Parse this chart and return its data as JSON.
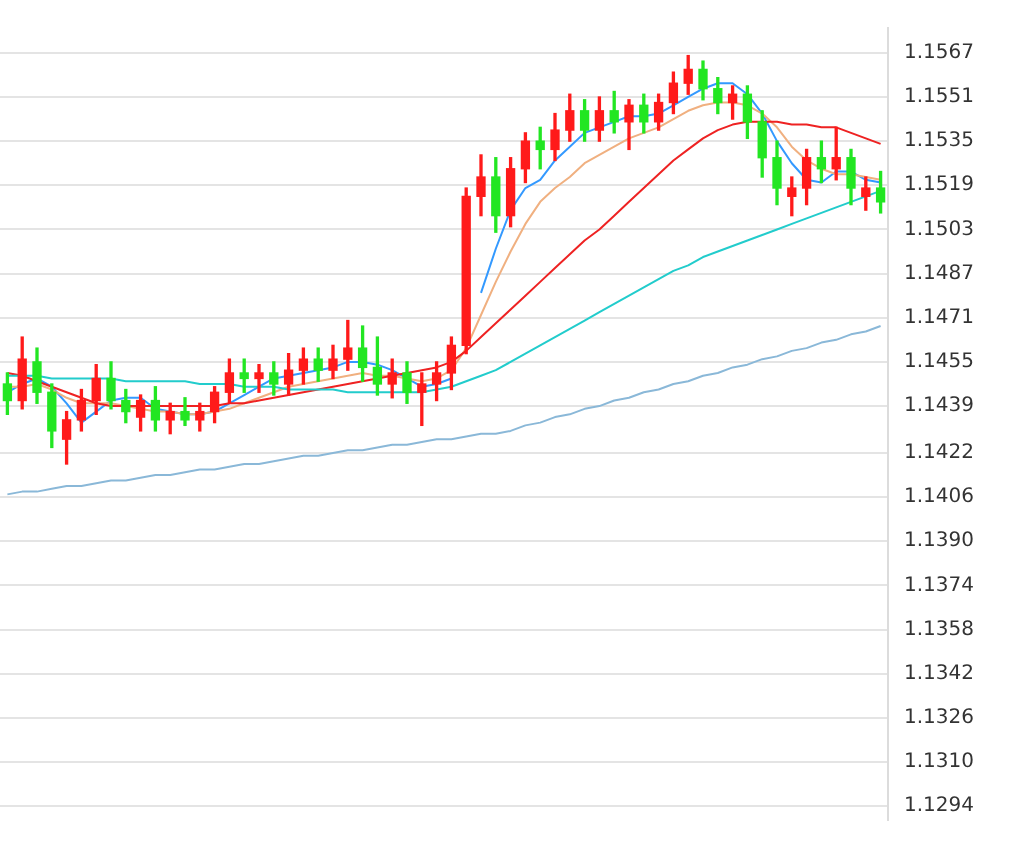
{
  "chart_data": {
    "type": "candlestick",
    "categories": [
      null,
      null,
      null,
      null,
      null,
      null,
      null,
      null,
      null,
      null,
      null,
      null,
      null,
      null,
      null,
      null,
      null,
      null,
      null,
      null,
      null,
      null,
      null,
      null,
      null,
      null,
      null,
      null,
      null,
      null,
      null,
      null,
      null,
      null,
      null,
      null,
      null,
      null,
      null,
      null,
      null,
      null,
      null,
      null,
      null,
      null,
      null,
      null,
      null,
      null,
      null,
      null,
      null,
      null,
      null,
      null,
      null,
      null,
      null,
      null
    ],
    "ohlc": [
      [
        1.1447,
        1.1451,
        1.1436,
        1.1441
      ],
      [
        1.1441,
        1.1464,
        1.1438,
        1.1456
      ],
      [
        1.1455,
        1.146,
        1.144,
        1.1444
      ],
      [
        1.1444,
        1.1447,
        1.1424,
        1.143
      ],
      [
        1.1427,
        1.1437,
        1.1418,
        1.1434
      ],
      [
        1.1434,
        1.1445,
        1.143,
        1.1441
      ],
      [
        1.1441,
        1.1454,
        1.1436,
        1.1449
      ],
      [
        1.1449,
        1.1455,
        1.1438,
        1.1441
      ],
      [
        1.1441,
        1.1445,
        1.1433,
        1.1437
      ],
      [
        1.1435,
        1.1443,
        1.143,
        1.1441
      ],
      [
        1.1441,
        1.1446,
        1.143,
        1.1434
      ],
      [
        1.1434,
        1.144,
        1.1429,
        1.1437
      ],
      [
        1.1437,
        1.1442,
        1.1432,
        1.1434
      ],
      [
        1.1434,
        1.144,
        1.143,
        1.1437
      ],
      [
        1.1437,
        1.1446,
        1.1433,
        1.1444
      ],
      [
        1.1444,
        1.1456,
        1.144,
        1.1451
      ],
      [
        1.1451,
        1.1456,
        1.1444,
        1.1449
      ],
      [
        1.1449,
        1.1454,
        1.1444,
        1.1451
      ],
      [
        1.1451,
        1.1455,
        1.1443,
        1.1447
      ],
      [
        1.1447,
        1.1458,
        1.1443,
        1.1452
      ],
      [
        1.1452,
        1.146,
        1.1447,
        1.1456
      ],
      [
        1.1456,
        1.146,
        1.1448,
        1.1452
      ],
      [
        1.1452,
        1.1461,
        1.1449,
        1.1456
      ],
      [
        1.1456,
        1.147,
        1.1452,
        1.146
      ],
      [
        1.146,
        1.1468,
        1.1448,
        1.1453
      ],
      [
        1.1453,
        1.1464,
        1.1443,
        1.1447
      ],
      [
        1.1447,
        1.1456,
        1.1442,
        1.1451
      ],
      [
        1.1451,
        1.1455,
        1.144,
        1.1444
      ],
      [
        1.1444,
        1.1451,
        1.1432,
        1.1447
      ],
      [
        1.1447,
        1.1455,
        1.1441,
        1.1451
      ],
      [
        1.1451,
        1.1464,
        1.1445,
        1.1461
      ],
      [
        1.1461,
        1.1518,
        1.1458,
        1.1515
      ],
      [
        1.1515,
        1.153,
        1.1508,
        1.1522
      ],
      [
        1.1522,
        1.1529,
        1.1502,
        1.1508
      ],
      [
        1.1508,
        1.1529,
        1.1504,
        1.1525
      ],
      [
        1.1525,
        1.1538,
        1.152,
        1.1535
      ],
      [
        1.1535,
        1.154,
        1.1525,
        1.1532
      ],
      [
        1.1532,
        1.1545,
        1.1528,
        1.1539
      ],
      [
        1.1539,
        1.1552,
        1.1535,
        1.1546
      ],
      [
        1.1546,
        1.155,
        1.1535,
        1.1539
      ],
      [
        1.1539,
        1.1551,
        1.1535,
        1.1546
      ],
      [
        1.1546,
        1.1553,
        1.1538,
        1.1542
      ],
      [
        1.1542,
        1.155,
        1.1532,
        1.1548
      ],
      [
        1.1548,
        1.1552,
        1.1538,
        1.1542
      ],
      [
        1.1542,
        1.1552,
        1.1539,
        1.1549
      ],
      [
        1.1549,
        1.156,
        1.1545,
        1.1556
      ],
      [
        1.1556,
        1.1566,
        1.1552,
        1.1561
      ],
      [
        1.1561,
        1.1564,
        1.155,
        1.1554
      ],
      [
        1.1554,
        1.1558,
        1.1545,
        1.1549
      ],
      [
        1.1549,
        1.1555,
        1.1543,
        1.1552
      ],
      [
        1.1552,
        1.1555,
        1.1536,
        1.1542
      ],
      [
        1.1542,
        1.1546,
        1.1522,
        1.1529
      ],
      [
        1.1529,
        1.1535,
        1.1512,
        1.1518
      ],
      [
        1.1515,
        1.1522,
        1.1508,
        1.1518
      ],
      [
        1.1518,
        1.1532,
        1.1512,
        1.1529
      ],
      [
        1.1529,
        1.1535,
        1.152,
        1.1525
      ],
      [
        1.1525,
        1.154,
        1.1521,
        1.1529
      ],
      [
        1.1529,
        1.1532,
        1.1512,
        1.1518
      ],
      [
        1.1515,
        1.1522,
        1.151,
        1.1518
      ],
      [
        1.1518,
        1.1524,
        1.1509,
        1.1513
      ]
    ],
    "colors": [
      "#22e622",
      "#ff1a1a",
      "#22e622",
      "#22e622",
      "#ff1a1a",
      "#ff1a1a",
      "#ff1a1a",
      "#22e622",
      "#22e622",
      "#ff1a1a",
      "#22e622",
      "#ff1a1a",
      "#22e622",
      "#ff1a1a",
      "#ff1a1a",
      "#ff1a1a",
      "#22e622",
      "#ff1a1a",
      "#22e622",
      "#ff1a1a",
      "#ff1a1a",
      "#22e622",
      "#ff1a1a",
      "#ff1a1a",
      "#22e622",
      "#22e622",
      "#ff1a1a",
      "#22e622",
      "#ff1a1a",
      "#ff1a1a",
      "#ff1a1a",
      "#ff1a1a",
      "#ff1a1a",
      "#22e622",
      "#ff1a1a",
      "#ff1a1a",
      "#22e622",
      "#ff1a1a",
      "#ff1a1a",
      "#22e622",
      "#ff1a1a",
      "#22e622",
      "#ff1a1a",
      "#22e622",
      "#ff1a1a",
      "#ff1a1a",
      "#ff1a1a",
      "#22e622",
      "#22e622",
      "#ff1a1a",
      "#22e622",
      "#22e622",
      "#22e622",
      "#ff1a1a",
      "#ff1a1a",
      "#22e622",
      "#ff1a1a",
      "#22e622",
      "#ff1a1a",
      "#22e622"
    ],
    "series": [
      {
        "type": "line",
        "color": "#8ab8d8",
        "values": [
          1.1407,
          1.1408,
          1.1408,
          1.1409,
          1.141,
          1.141,
          1.1411,
          1.1412,
          1.1412,
          1.1413,
          1.1414,
          1.1414,
          1.1415,
          1.1416,
          1.1416,
          1.1417,
          1.1418,
          1.1418,
          1.1419,
          1.142,
          1.1421,
          1.1421,
          1.1422,
          1.1423,
          1.1423,
          1.1424,
          1.1425,
          1.1425,
          1.1426,
          1.1427,
          1.1427,
          1.1428,
          1.1429,
          1.1429,
          1.143,
          1.1432,
          1.1433,
          1.1435,
          1.1436,
          1.1438,
          1.1439,
          1.1441,
          1.1442,
          1.1444,
          1.1445,
          1.1447,
          1.1448,
          1.145,
          1.1451,
          1.1453,
          1.1454,
          1.1456,
          1.1457,
          1.1459,
          1.146,
          1.1462,
          1.1463,
          1.1465,
          1.1466,
          1.1468
        ]
      },
      {
        "type": "line",
        "color": "#22cccc",
        "values": [
          1.145,
          1.145,
          1.145,
          1.1449,
          1.1449,
          1.1449,
          1.1449,
          1.1449,
          1.1448,
          1.1448,
          1.1448,
          1.1448,
          1.1448,
          1.1447,
          1.1447,
          1.1447,
          1.1446,
          1.1446,
          1.1446,
          1.1445,
          1.1445,
          1.1445,
          1.1445,
          1.1444,
          1.1444,
          1.1444,
          1.1444,
          1.1444,
          1.1444,
          1.1445,
          1.1446,
          1.1448,
          1.145,
          1.1452,
          1.1455,
          1.1458,
          1.1461,
          1.1464,
          1.1467,
          1.147,
          1.1473,
          1.1476,
          1.1479,
          1.1482,
          1.1485,
          1.1488,
          1.149,
          1.1493,
          1.1495,
          1.1497,
          1.1499,
          1.1501,
          1.1503,
          1.1505,
          1.1507,
          1.1509,
          1.1511,
          1.1513,
          1.1515,
          1.1517
        ]
      },
      {
        "type": "line",
        "color": "#ee2222",
        "values": [
          1.1451,
          1.145,
          1.1448,
          1.1446,
          1.1444,
          1.1442,
          1.144,
          1.1439,
          1.1439,
          1.1439,
          1.1439,
          1.1439,
          1.1439,
          1.1439,
          1.1439,
          1.144,
          1.144,
          1.1441,
          1.1442,
          1.1443,
          1.1444,
          1.1445,
          1.1446,
          1.1447,
          1.1448,
          1.1449,
          1.145,
          1.1451,
          1.1452,
          1.1453,
          1.1455,
          1.1459,
          1.1464,
          1.1469,
          1.1474,
          1.1479,
          1.1484,
          1.1489,
          1.1494,
          1.1499,
          1.1503,
          1.1508,
          1.1513,
          1.1518,
          1.1523,
          1.1528,
          1.1532,
          1.1536,
          1.1539,
          1.1541,
          1.1542,
          1.1542,
          1.1542,
          1.1541,
          1.1541,
          1.154,
          1.154,
          1.1538,
          1.1536,
          1.1534
        ]
      },
      {
        "type": "line",
        "color": "#f0b080",
        "values": [
          1.1446,
          1.1446,
          1.1447,
          1.1445,
          1.1442,
          1.144,
          1.144,
          1.144,
          1.1439,
          1.1438,
          1.1437,
          1.1437,
          1.1436,
          1.1436,
          1.1437,
          1.1438,
          1.144,
          1.1442,
          1.1444,
          1.1446,
          1.1447,
          1.1448,
          1.1449,
          1.145,
          1.1451,
          1.145,
          1.145,
          1.1449,
          1.1448,
          1.1449,
          1.1452,
          1.146,
          1.1472,
          1.1484,
          1.1495,
          1.1505,
          1.1513,
          1.1518,
          1.1522,
          1.1527,
          1.153,
          1.1533,
          1.1536,
          1.1538,
          1.154,
          1.1543,
          1.1546,
          1.1548,
          1.1549,
          1.1549,
          1.1548,
          1.1545,
          1.154,
          1.1533,
          1.1528,
          1.1525,
          1.1523,
          1.1523,
          1.1522,
          1.1521
        ]
      },
      {
        "type": "line",
        "color": "#3399ff",
        "values": [
          1.1444,
          1.1447,
          1.1449,
          1.1446,
          1.144,
          1.1433,
          1.1437,
          1.1441,
          1.1442,
          1.1442,
          1.1438,
          1.1437,
          1.1436,
          1.1436,
          1.1437,
          1.144,
          1.1443,
          1.1446,
          1.1449,
          1.145,
          1.1451,
          1.1452,
          1.1453,
          1.1455,
          1.1455,
          1.1454,
          1.1452,
          1.1449,
          1.1446,
          1.1447,
          1.1449,
          null,
          1.148,
          1.1496,
          1.151,
          1.1518,
          1.1521,
          1.1528,
          1.1533,
          1.1538,
          1.154,
          1.1542,
          1.1544,
          1.1544,
          1.1545,
          1.1548,
          1.1551,
          1.1554,
          1.1556,
          1.1556,
          1.1552,
          1.1545,
          1.1535,
          1.1527,
          1.1521,
          1.152,
          1.1524,
          1.1524,
          1.1521,
          1.152
        ]
      }
    ],
    "ylim": [
      1.1289,
      1.1576
    ],
    "yticks": [
      1.1567,
      1.1551,
      1.1535,
      1.1519,
      1.1503,
      1.1487,
      1.1471,
      1.1455,
      1.1439,
      1.1422,
      1.1406,
      {
        "value": 1.139,
        "label": "1.1390"
      },
      1.1374,
      1.1358,
      1.1342,
      1.1326,
      {
        "value": 1.131,
        "label": "1.1310"
      },
      1.1294
    ],
    "grid": "y",
    "tick_labels": "y"
  }
}
